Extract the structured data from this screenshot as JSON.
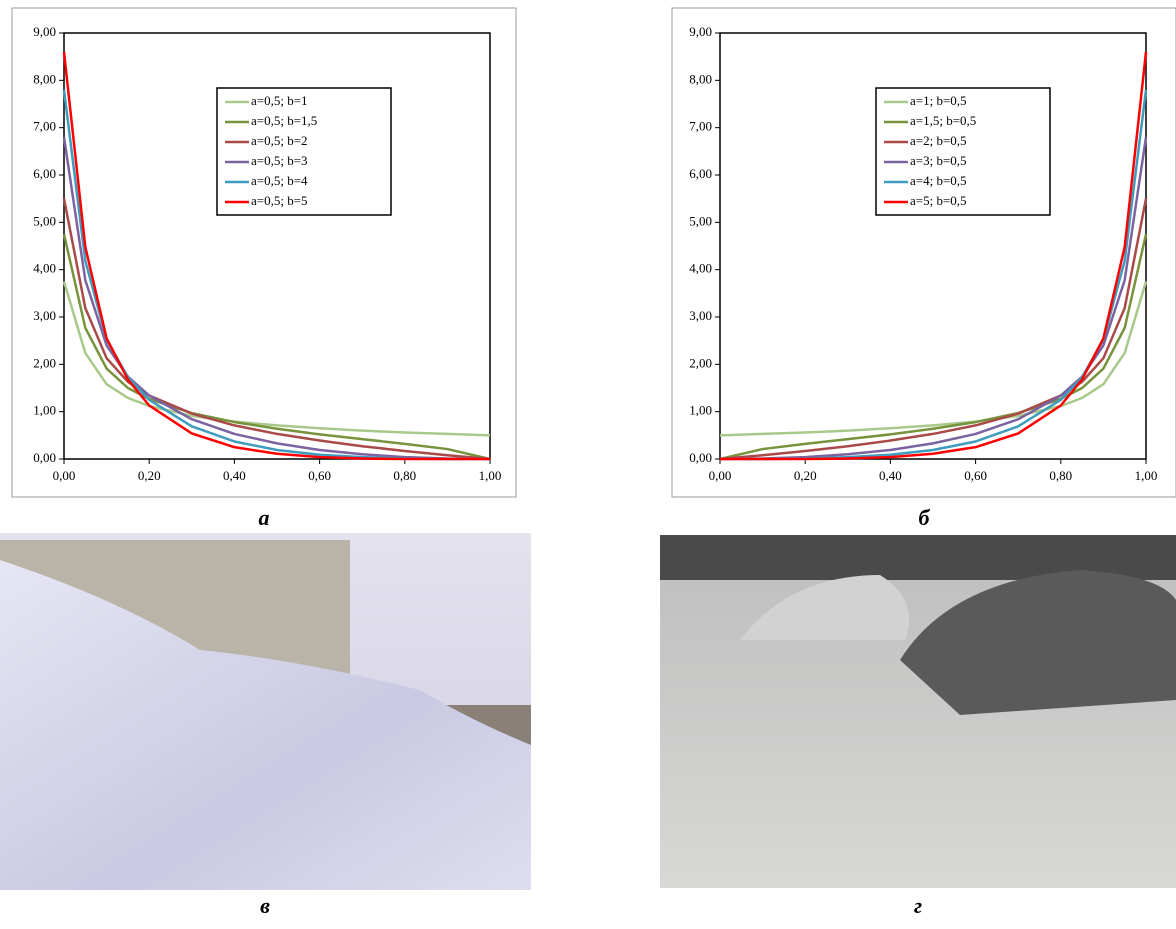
{
  "chart_data": [
    {
      "type": "line",
      "caption": "а",
      "x": [
        0,
        0.05,
        0.1,
        0.15,
        0.2,
        0.3,
        0.4,
        0.5,
        0.6,
        0.7,
        0.8,
        0.9,
        1
      ],
      "series": [
        {
          "name": "a=0,5; b=1",
          "color": "#a8c98a",
          "values": [
            3.75,
            2.24,
            1.58,
            1.29,
            1.12,
            0.91,
            0.79,
            0.71,
            0.65,
            0.6,
            0.56,
            0.53,
            0.5
          ]
        },
        {
          "name": "a=0,5; b=1,5",
          "color": "#77933c",
          "values": [
            4.75,
            2.77,
            1.91,
            1.5,
            1.27,
            0.97,
            0.78,
            0.64,
            0.52,
            0.42,
            0.32,
            0.21,
            0
          ]
        },
        {
          "name": "a=0,5; b=2",
          "color": "#a94a48",
          "values": [
            5.5,
            3.19,
            2.13,
            1.63,
            1.34,
            0.96,
            0.71,
            0.53,
            0.39,
            0.27,
            0.17,
            0.08,
            0
          ]
        },
        {
          "name": "a=0,5; b=3",
          "color": "#7b62a0",
          "values": [
            6.8,
            3.78,
            2.4,
            1.74,
            1.34,
            0.84,
            0.53,
            0.33,
            0.19,
            0.1,
            0.04,
            0.01,
            0
          ]
        },
        {
          "name": "a=0,5; b=4",
          "color": "#3e9cbf",
          "values": [
            7.8,
            4.19,
            2.52,
            1.73,
            1.25,
            0.69,
            0.37,
            0.19,
            0.09,
            0.04,
            0.01,
            0,
            0
          ]
        },
        {
          "name": "a=0,5; b=5",
          "color": "#ff0000",
          "values": [
            8.6,
            4.48,
            2.55,
            1.68,
            1.13,
            0.54,
            0.25,
            0.11,
            0.04,
            0.01,
            0,
            0,
            0
          ]
        }
      ],
      "xlim": [
        0,
        1
      ],
      "ylim": [
        0,
        9
      ],
      "xticks": [
        {
          "value": 0,
          "label": "0,00"
        },
        {
          "value": 0.2,
          "label": "0,20"
        },
        {
          "value": 0.4,
          "label": "0,40"
        },
        {
          "value": 0.6,
          "label": "0,60"
        },
        {
          "value": 0.8,
          "label": "0,80"
        },
        {
          "value": 1,
          "label": "1,00"
        }
      ],
      "yticks": [
        {
          "value": 0,
          "label": "0,00"
        },
        {
          "value": 1,
          "label": "1,00"
        },
        {
          "value": 2,
          "label": "2,00"
        },
        {
          "value": 3,
          "label": "3,00"
        },
        {
          "value": 4,
          "label": "4,00"
        },
        {
          "value": 5,
          "label": "5,00"
        },
        {
          "value": 6,
          "label": "6,00"
        },
        {
          "value": 7,
          "label": "7,00"
        },
        {
          "value": 8,
          "label": "8,00"
        },
        {
          "value": 9,
          "label": "9,00"
        }
      ]
    },
    {
      "type": "line",
      "caption": "б",
      "x": [
        0,
        0.1,
        0.2,
        0.3,
        0.4,
        0.5,
        0.6,
        0.7,
        0.8,
        0.85,
        0.9,
        0.95,
        1
      ],
      "series": [
        {
          "name": "a=1; b=0,5",
          "color": "#a8c98a",
          "values": [
            0.5,
            0.53,
            0.56,
            0.6,
            0.65,
            0.71,
            0.79,
            0.91,
            1.12,
            1.29,
            1.58,
            2.24,
            3.75
          ]
        },
        {
          "name": "a=1,5; b=0,5",
          "color": "#77933c",
          "values": [
            0,
            0.21,
            0.32,
            0.42,
            0.52,
            0.64,
            0.78,
            0.97,
            1.27,
            1.5,
            1.91,
            2.77,
            4.75
          ]
        },
        {
          "name": "a=2; b=0,5",
          "color": "#a94a48",
          "values": [
            0,
            0.08,
            0.17,
            0.27,
            0.39,
            0.53,
            0.71,
            0.96,
            1.34,
            1.63,
            2.13,
            3.19,
            5.5
          ]
        },
        {
          "name": "a=3; b=0,5",
          "color": "#7b62a0",
          "values": [
            0,
            0.01,
            0.04,
            0.1,
            0.19,
            0.33,
            0.53,
            0.84,
            1.34,
            1.74,
            2.4,
            3.78,
            6.8
          ]
        },
        {
          "name": "a=4; b=0,5",
          "color": "#3e9cbf",
          "values": [
            0,
            0,
            0.01,
            0.04,
            0.09,
            0.19,
            0.37,
            0.69,
            1.25,
            1.73,
            2.52,
            4.19,
            7.8
          ]
        },
        {
          "name": "a=5; b=0,5",
          "color": "#ff0000",
          "values": [
            0,
            0,
            0,
            0.01,
            0.04,
            0.11,
            0.25,
            0.54,
            1.13,
            1.68,
            2.55,
            4.48,
            8.6
          ]
        }
      ],
      "xlim": [
        0,
        1
      ],
      "ylim": [
        0,
        9
      ],
      "xticks": [
        {
          "value": 0,
          "label": "0,00"
        },
        {
          "value": 0.2,
          "label": "0,20"
        },
        {
          "value": 0.4,
          "label": "0,40"
        },
        {
          "value": 0.6,
          "label": "0,60"
        },
        {
          "value": 0.8,
          "label": "0,80"
        },
        {
          "value": 1,
          "label": "1,00"
        }
      ],
      "yticks": [
        {
          "value": 0,
          "label": "0,00"
        },
        {
          "value": 1,
          "label": "1,00"
        },
        {
          "value": 2,
          "label": "2,00"
        },
        {
          "value": 3,
          "label": "3,00"
        },
        {
          "value": 4,
          "label": "4,00"
        },
        {
          "value": 5,
          "label": "5,00"
        },
        {
          "value": 6,
          "label": "6,00"
        },
        {
          "value": 7,
          "label": "7,00"
        },
        {
          "value": 8,
          "label": "8,00"
        },
        {
          "value": 9,
          "label": "9,00"
        }
      ]
    }
  ],
  "photos": [
    {
      "caption": "в"
    },
    {
      "caption": "г"
    }
  ]
}
